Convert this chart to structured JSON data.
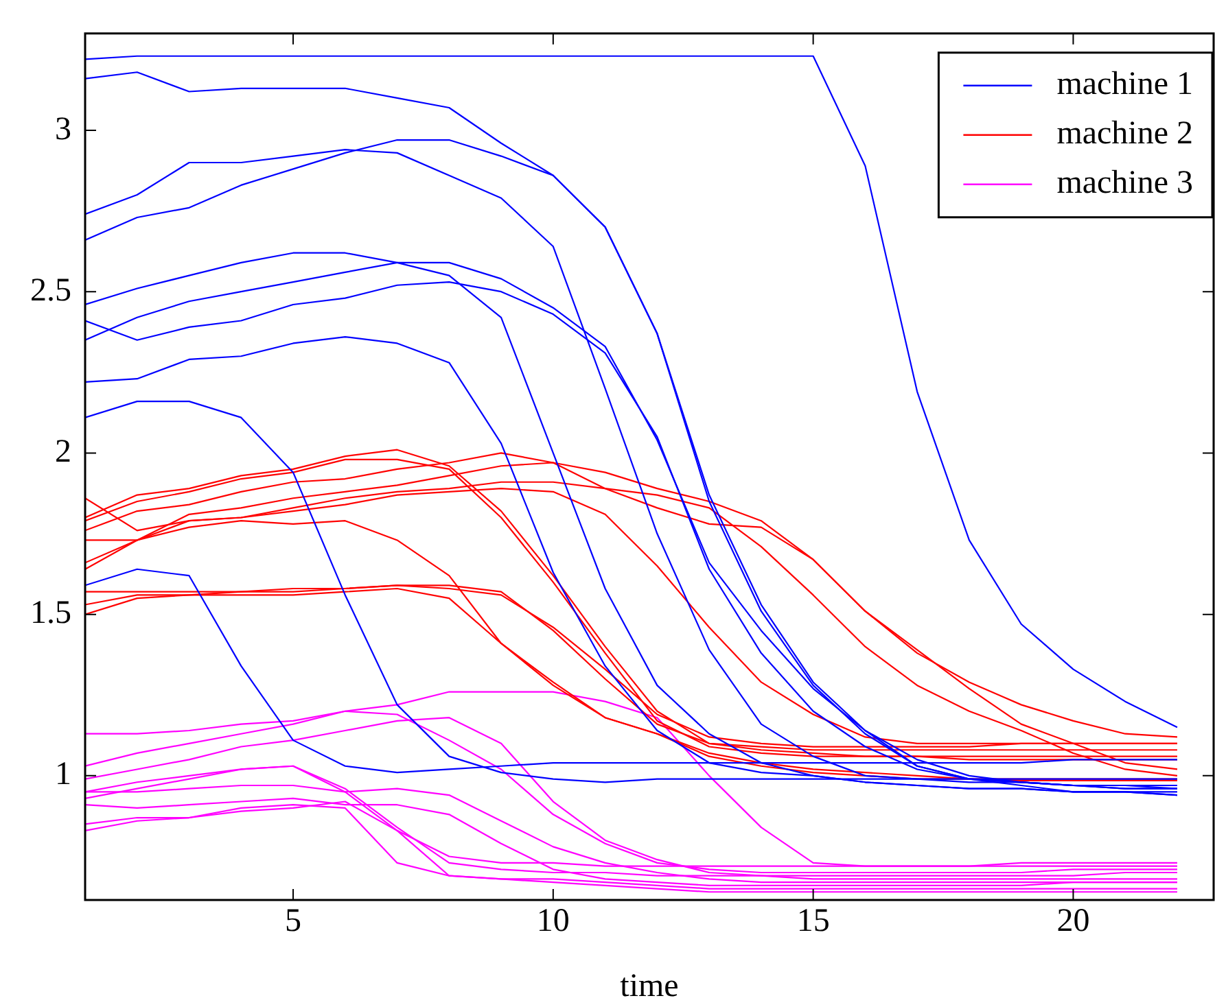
{
  "chart_data": {
    "type": "line",
    "xlabel": "time",
    "x": [
      1,
      2,
      3,
      4,
      5,
      6,
      7,
      8,
      9,
      10,
      11,
      12,
      13,
      14,
      15,
      16,
      17,
      18,
      19,
      20,
      21,
      22
    ],
    "xlim": [
      1,
      22.7
    ],
    "xticks": [
      5,
      10,
      15,
      20
    ],
    "ylim": [
      0.615,
      3.3
    ],
    "yticks": [
      1,
      1.5,
      2,
      2.5,
      3
    ],
    "legend": "top right",
    "grid": false,
    "marker": "none",
    "line_style": "solid",
    "series": [
      {
        "name": "machine 1",
        "color": "#0000ff",
        "values": [
          3.22,
          3.23,
          3.23,
          3.23,
          3.23,
          3.23,
          3.23,
          3.23,
          3.23,
          3.23,
          3.23,
          3.23,
          3.23,
          3.23,
          3.23,
          2.89,
          2.19,
          1.73,
          1.47,
          1.33,
          1.23,
          1.15
        ]
      },
      {
        "color": "#0000ff",
        "values": [
          3.16,
          3.18,
          3.12,
          3.13,
          3.13,
          3.13,
          3.1,
          3.07,
          2.96,
          2.86,
          2.7,
          2.37,
          1.85,
          1.51,
          1.28,
          1.13,
          1.03,
          0.99,
          0.97,
          0.95,
          0.95,
          0.94
        ]
      },
      {
        "color": "#0000ff",
        "values": [
          2.66,
          2.73,
          2.76,
          2.83,
          2.88,
          2.93,
          2.97,
          2.97,
          2.92,
          2.86,
          2.7,
          2.37,
          1.87,
          1.53,
          1.29,
          1.14,
          1.05,
          1.0,
          0.98,
          0.97,
          0.96,
          0.96
        ]
      },
      {
        "color": "#0000ff",
        "values": [
          2.74,
          2.8,
          2.9,
          2.9,
          2.92,
          2.94,
          2.93,
          2.86,
          2.79,
          2.64,
          2.2,
          1.75,
          1.39,
          1.16,
          1.06,
          1.0,
          0.99,
          0.98,
          0.98,
          0.97,
          0.97,
          0.97
        ]
      },
      {
        "color": "#0000ff",
        "values": [
          2.46,
          2.51,
          2.55,
          2.59,
          2.62,
          2.62,
          2.59,
          2.55,
          2.42,
          2.0,
          1.58,
          1.28,
          1.13,
          1.04,
          1.0,
          0.98,
          0.97,
          0.96,
          0.96,
          0.95,
          0.95,
          0.95
        ]
      },
      {
        "color": "#0000ff",
        "values": [
          2.41,
          2.35,
          2.39,
          2.41,
          2.46,
          2.48,
          2.52,
          2.53,
          2.5,
          2.43,
          2.31,
          2.05,
          1.64,
          1.38,
          1.2,
          1.09,
          1.02,
          0.99,
          0.98,
          0.97,
          0.97,
          0.96
        ]
      },
      {
        "color": "#0000ff",
        "values": [
          2.35,
          2.42,
          2.47,
          2.5,
          2.53,
          2.56,
          2.59,
          2.59,
          2.54,
          2.45,
          2.33,
          2.04,
          1.66,
          1.45,
          1.27,
          1.14,
          1.03,
          0.99,
          0.98,
          0.97,
          0.96,
          0.96
        ]
      },
      {
        "color": "#0000ff",
        "values": [
          2.22,
          2.23,
          2.29,
          2.3,
          2.34,
          2.36,
          2.34,
          2.28,
          2.03,
          1.63,
          1.34,
          1.14,
          1.04,
          1.01,
          1.0,
          0.98,
          0.97,
          0.96,
          0.96,
          0.95,
          0.95,
          0.94
        ]
      },
      {
        "color": "#0000ff",
        "values": [
          2.11,
          2.16,
          2.16,
          2.11,
          1.94,
          1.56,
          1.22,
          1.06,
          1.01,
          0.99,
          0.98,
          0.99,
          0.99,
          0.99,
          0.99,
          0.99,
          0.99,
          0.99,
          0.99,
          0.99,
          0.99,
          0.99
        ]
      },
      {
        "color": "#0000ff",
        "values": [
          1.59,
          1.64,
          1.62,
          1.34,
          1.11,
          1.03,
          1.01,
          1.02,
          1.03,
          1.04,
          1.04,
          1.04,
          1.04,
          1.04,
          1.04,
          1.04,
          1.04,
          1.04,
          1.04,
          1.05,
          1.05,
          1.05
        ]
      },
      {
        "name": "machine 2",
        "color": "#ff0000",
        "values": [
          1.8,
          1.87,
          1.89,
          1.93,
          1.95,
          1.99,
          2.01,
          1.96,
          1.82,
          1.62,
          1.4,
          1.2,
          1.1,
          1.09,
          1.08,
          1.08,
          1.08,
          1.08,
          1.08,
          1.08,
          1.08,
          1.08
        ]
      },
      {
        "color": "#ff0000",
        "values": [
          1.79,
          1.85,
          1.88,
          1.92,
          1.94,
          1.98,
          1.98,
          1.95,
          1.8,
          1.6,
          1.38,
          1.17,
          1.09,
          1.07,
          1.06,
          1.06,
          1.06,
          1.06,
          1.06,
          1.06,
          1.06,
          1.06
        ]
      },
      {
        "color": "#ff0000",
        "values": [
          1.76,
          1.82,
          1.84,
          1.88,
          1.91,
          1.92,
          1.95,
          1.97,
          2.0,
          1.97,
          1.94,
          1.89,
          1.85,
          1.79,
          1.67,
          1.51,
          1.38,
          1.29,
          1.22,
          1.17,
          1.13,
          1.12
        ]
      },
      {
        "color": "#ff0000",
        "values": [
          1.64,
          1.73,
          1.81,
          1.83,
          1.86,
          1.88,
          1.9,
          1.93,
          1.96,
          1.97,
          1.89,
          1.83,
          1.78,
          1.77,
          1.67,
          1.51,
          1.39,
          1.27,
          1.16,
          1.1,
          1.04,
          1.02
        ]
      },
      {
        "color": "#ff0000",
        "values": [
          1.66,
          1.73,
          1.79,
          1.8,
          1.83,
          1.86,
          1.88,
          1.89,
          1.91,
          1.91,
          1.89,
          1.87,
          1.83,
          1.71,
          1.56,
          1.4,
          1.28,
          1.2,
          1.14,
          1.07,
          1.02,
          1.0
        ]
      },
      {
        "color": "#ff0000",
        "values": [
          1.86,
          1.76,
          1.79,
          1.8,
          1.82,
          1.84,
          1.87,
          1.88,
          1.89,
          1.88,
          1.81,
          1.65,
          1.46,
          1.29,
          1.19,
          1.12,
          1.1,
          1.1,
          1.1,
          1.1,
          1.1,
          1.1
        ]
      },
      {
        "color": "#ff0000",
        "values": [
          1.73,
          1.73,
          1.77,
          1.79,
          1.78,
          1.79,
          1.73,
          1.62,
          1.41,
          1.28,
          1.18,
          1.13,
          1.07,
          1.04,
          1.02,
          1.01,
          1.0,
          0.99,
          0.99,
          0.99,
          0.99,
          0.99
        ]
      },
      {
        "color": "#ff0000",
        "values": [
          1.57,
          1.57,
          1.57,
          1.57,
          1.57,
          1.58,
          1.59,
          1.58,
          1.56,
          1.46,
          1.33,
          1.19,
          1.12,
          1.1,
          1.09,
          1.09,
          1.09,
          1.09,
          1.1,
          1.1,
          1.1,
          1.1
        ]
      },
      {
        "color": "#ff0000",
        "values": [
          1.53,
          1.56,
          1.56,
          1.57,
          1.58,
          1.58,
          1.59,
          1.59,
          1.57,
          1.45,
          1.3,
          1.16,
          1.1,
          1.08,
          1.07,
          1.06,
          1.06,
          1.05,
          1.05,
          1.05,
          1.05,
          1.05
        ]
      },
      {
        "color": "#ff0000",
        "values": [
          1.5,
          1.55,
          1.56,
          1.56,
          1.56,
          1.57,
          1.58,
          1.55,
          1.41,
          1.29,
          1.18,
          1.13,
          1.06,
          1.03,
          1.01,
          1.0,
          0.99,
          0.99,
          0.985,
          0.985,
          0.985,
          0.985
        ]
      },
      {
        "name": "machine 3",
        "color": "#ff00ff",
        "values": [
          1.13,
          1.13,
          1.14,
          1.16,
          1.17,
          1.2,
          1.22,
          1.26,
          1.26,
          1.26,
          1.23,
          1.18,
          1.0,
          0.84,
          0.73,
          0.72,
          0.72,
          0.72,
          0.73,
          0.73,
          0.73,
          0.73
        ]
      },
      {
        "color": "#ff00ff",
        "values": [
          1.03,
          1.07,
          1.1,
          1.13,
          1.16,
          1.2,
          1.19,
          1.11,
          1.02,
          0.88,
          0.79,
          0.73,
          0.71,
          0.7,
          0.7,
          0.7,
          0.7,
          0.7,
          0.7,
          0.71,
          0.71,
          0.71
        ]
      },
      {
        "color": "#ff00ff",
        "values": [
          0.99,
          1.02,
          1.05,
          1.09,
          1.11,
          1.14,
          1.17,
          1.18,
          1.1,
          0.92,
          0.8,
          0.74,
          0.7,
          0.69,
          0.69,
          0.69,
          0.69,
          0.69,
          0.69,
          0.69,
          0.7,
          0.7
        ]
      },
      {
        "color": "#ff00ff",
        "values": [
          0.95,
          0.98,
          1.0,
          1.02,
          1.03,
          0.95,
          0.83,
          0.75,
          0.73,
          0.73,
          0.72,
          0.72,
          0.72,
          0.72,
          0.72,
          0.72,
          0.72,
          0.72,
          0.72,
          0.72,
          0.72,
          0.72
        ]
      },
      {
        "color": "#ff00ff",
        "values": [
          0.93,
          0.96,
          0.99,
          1.02,
          1.03,
          0.96,
          0.84,
          0.73,
          0.71,
          0.7,
          0.7,
          0.69,
          0.69,
          0.69,
          0.68,
          0.68,
          0.68,
          0.68,
          0.68,
          0.68,
          0.68,
          0.68
        ]
      },
      {
        "color": "#ff00ff",
        "values": [
          0.91,
          0.9,
          0.91,
          0.92,
          0.93,
          0.91,
          0.91,
          0.88,
          0.79,
          0.71,
          0.68,
          0.67,
          0.66,
          0.66,
          0.66,
          0.66,
          0.66,
          0.66,
          0.66,
          0.67,
          0.67,
          0.67
        ]
      },
      {
        "color": "#ff00ff",
        "values": [
          0.95,
          0.95,
          0.96,
          0.97,
          0.97,
          0.95,
          0.96,
          0.94,
          0.86,
          0.78,
          0.73,
          0.7,
          0.68,
          0.67,
          0.67,
          0.67,
          0.67,
          0.67,
          0.67,
          0.67,
          0.67,
          0.67
        ]
      },
      {
        "color": "#ff00ff",
        "values": [
          0.85,
          0.87,
          0.87,
          0.89,
          0.9,
          0.92,
          0.83,
          0.69,
          0.68,
          0.68,
          0.67,
          0.66,
          0.65,
          0.65,
          0.65,
          0.65,
          0.65,
          0.65,
          0.65,
          0.65,
          0.65,
          0.65
        ]
      },
      {
        "color": "#ff00ff",
        "values": [
          0.83,
          0.86,
          0.87,
          0.9,
          0.91,
          0.9,
          0.73,
          0.69,
          0.68,
          0.67,
          0.66,
          0.65,
          0.64,
          0.64,
          0.64,
          0.64,
          0.64,
          0.64,
          0.64,
          0.64,
          0.64,
          0.64
        ]
      }
    ]
  }
}
